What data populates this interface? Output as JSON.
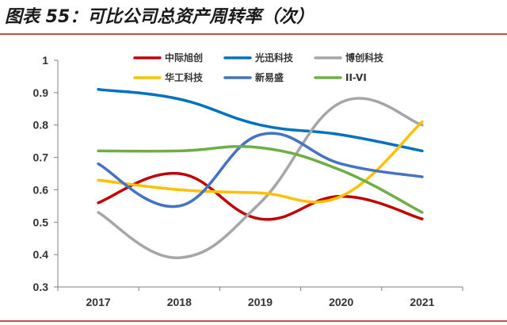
{
  "figure": {
    "title": "图表 55：可比公司总资产周转率（次）"
  },
  "chart_data": {
    "type": "line",
    "title": "",
    "xlabel": "",
    "ylabel": "",
    "categories": [
      "2017",
      "2018",
      "2019",
      "2020",
      "2021"
    ],
    "ylim": [
      0.3,
      1.0
    ],
    "yticks": [
      "0.3",
      "0.4",
      "0.5",
      "0.6",
      "0.7",
      "0.8",
      "0.9",
      "1"
    ],
    "grid": false,
    "legend_position": "top",
    "series": [
      {
        "name": "中际旭创",
        "color": "#c00000",
        "values": [
          0.56,
          0.65,
          0.51,
          0.58,
          0.51
        ]
      },
      {
        "name": "光迅科技",
        "color": "#0070c0",
        "values": [
          0.91,
          0.88,
          0.8,
          0.77,
          0.72
        ]
      },
      {
        "name": "博创科技",
        "color": "#a6a6a6",
        "values": [
          0.53,
          0.39,
          0.56,
          0.87,
          0.8
        ]
      },
      {
        "name": "华工科技",
        "color": "#ffc000",
        "values": [
          0.63,
          0.6,
          0.59,
          0.58,
          0.81
        ]
      },
      {
        "name": "新易盛",
        "color": "#4472c4",
        "values": [
          0.68,
          0.55,
          0.77,
          0.68,
          0.64
        ]
      },
      {
        "name": "II-VI",
        "color": "#70ad47",
        "values": [
          0.72,
          0.72,
          0.73,
          0.66,
          0.53
        ]
      }
    ]
  }
}
